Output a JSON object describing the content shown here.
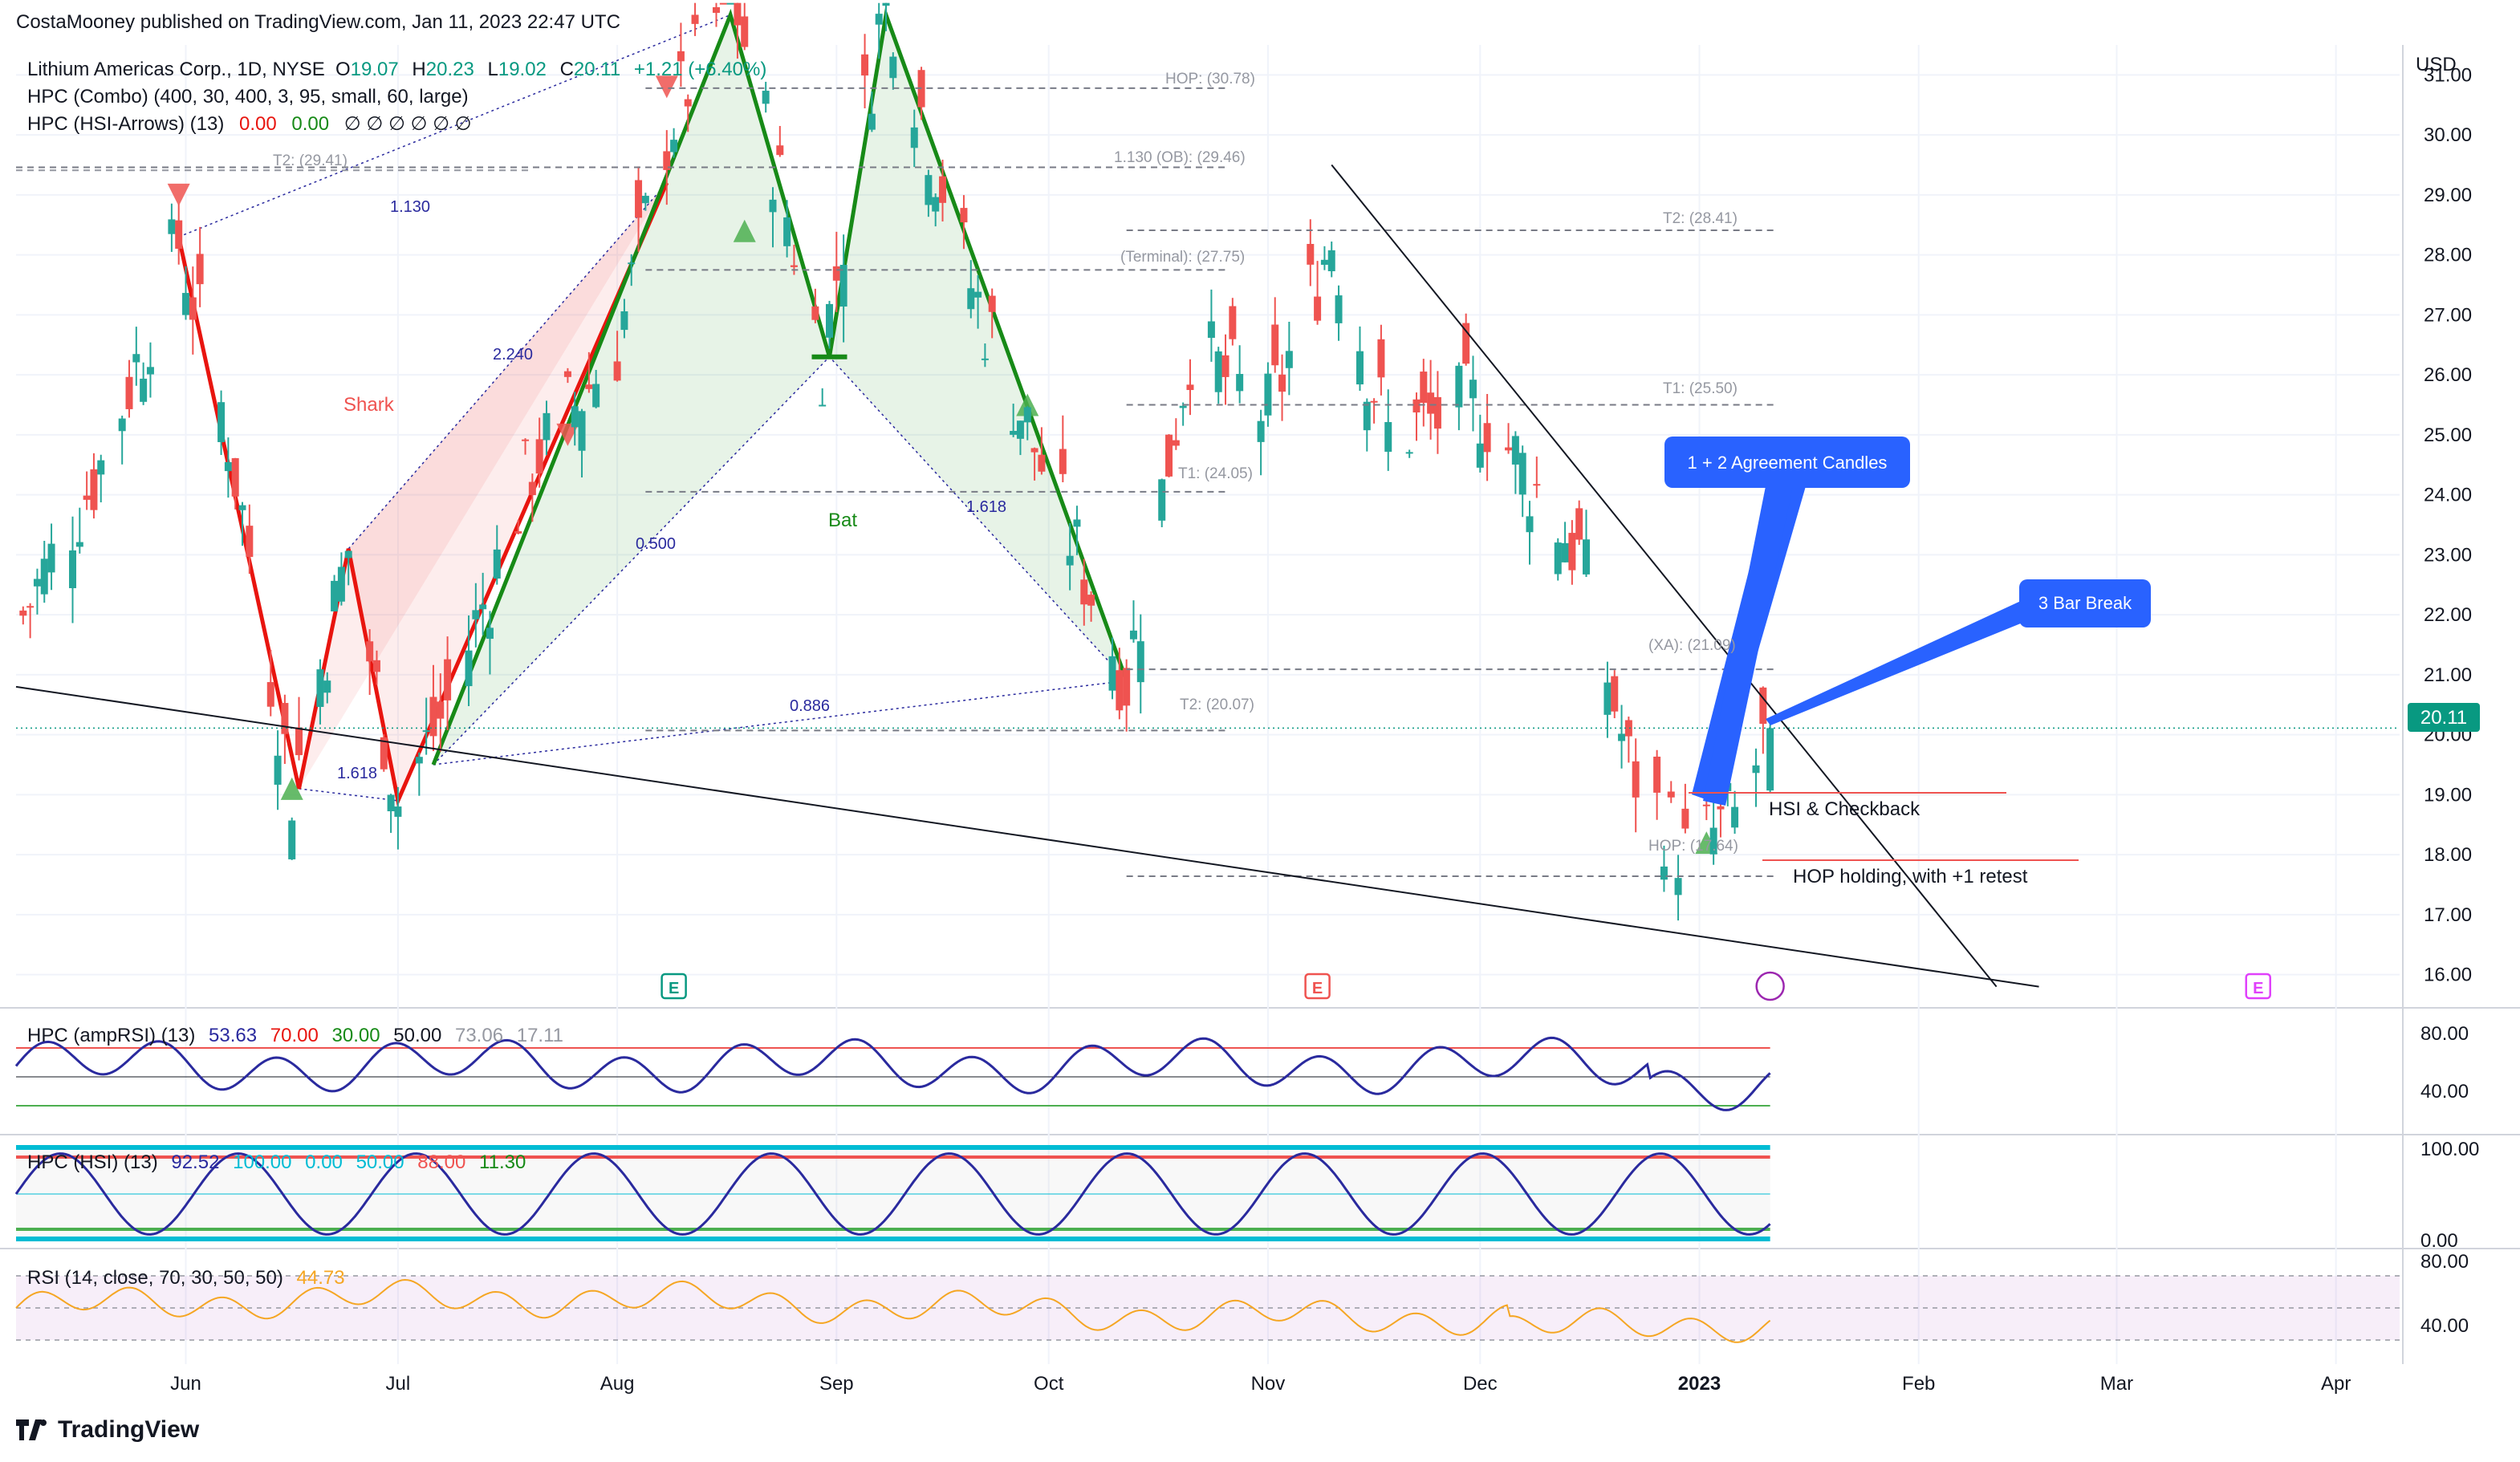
{
  "header": {
    "published": "CostaMooney published on TradingView.com, Jan 11, 2023 22:47 UTC"
  },
  "footer": {
    "brand": "TradingView"
  },
  "legend": {
    "symbol": "Lithium Americas Corp., 1D, NYSE",
    "o_label": "O",
    "o": "19.07",
    "h_label": "H",
    "h": "20.23",
    "l_label": "L",
    "l": "19.02",
    "c_label": "C",
    "c": "20.11",
    "chg": "+1.21 (+6.40%)",
    "combo": "HPC (Combo) (400, 30, 400, 3, 95, small, 60, large)",
    "arrows_name": "HPC (HSI-Arrows) (13)",
    "arrows_v1": "0.00",
    "arrows_v2": "0.00",
    "arrows_rest": "∅ ∅ ∅ ∅ ∅ ∅"
  },
  "price_axis": {
    "currency": "USD",
    "ticks": [
      "31.00",
      "30.00",
      "29.00",
      "28.00",
      "27.00",
      "26.00",
      "25.00",
      "24.00",
      "23.00",
      "22.00",
      "21.00",
      "20.00",
      "19.00",
      "18.00",
      "17.00",
      "16.00"
    ],
    "last_price": "20.11"
  },
  "time_axis": {
    "labels": [
      "Jun",
      "Jul",
      "Aug",
      "Sep",
      "Oct",
      "Nov",
      "Dec",
      "2023",
      "Feb",
      "Mar",
      "Apr"
    ]
  },
  "pattern_labels": {
    "shark": "Shark",
    "bat": "Bat",
    "r1130": "1.130",
    "r2240": "2.240",
    "r0500": "0.500",
    "r1618a": "1.618",
    "r0886": "0.886",
    "r1618b": "1.618"
  },
  "levels": {
    "hop_top": "HOP: (30.78)",
    "ob": "1.130 (OB): (29.46)",
    "t2_left": "T2: (29.41)",
    "t2_right": "T2: (28.41)",
    "terminal": "(Terminal): (27.75)",
    "t1_right": "T1: (25.50)",
    "t1_mid": "T1: (24.05)",
    "xa": "(XA): (21.09)",
    "t2_mid": "T2: (20.07)",
    "hop_bottom": "HOP: (17.64)"
  },
  "callouts": {
    "agreement": "1 + 2 Agreement Candles",
    "break": "3 Bar Break",
    "hsi": "HSI & Checkback",
    "hop": "HOP holding, with +1 retest"
  },
  "earnings": {
    "e": "E"
  },
  "amprsi": {
    "name": "HPC (ampRSI) (13)",
    "v1": "53.63",
    "v2": "70.00",
    "v3": "30.00",
    "v4": "50.00",
    "v5": "73.06",
    "v6": "17.11",
    "ticks": [
      "80.00",
      "40.00"
    ]
  },
  "hsi": {
    "name": "HPC (HSI) (13)",
    "v1": "92.52",
    "v2": "100.00",
    "v3": "0.00",
    "v4": "50.00",
    "v5": "88.00",
    "v6": "11.30",
    "ticks": [
      "100.00",
      "0.00"
    ]
  },
  "rsi": {
    "name": "RSI (14, close, 70, 30, 50, 50)",
    "v1": "44.73",
    "ticks": [
      "80.00",
      "40.00"
    ]
  },
  "colors": {
    "up": "#26a69a",
    "down": "#ef5350",
    "blue": "#2962ff",
    "navy": "#2a2a9e",
    "shark": "#e8150f",
    "bat": "#178a17",
    "rsi": "#f5a623"
  },
  "chart_data": {
    "type": "candlestick",
    "title": "Lithium Americas Corp., 1D, NYSE",
    "currency": "USD",
    "ylim": [
      15.5,
      31.5
    ],
    "x_range": [
      "2022-05-08",
      "2023-04-10"
    ],
    "last": 20.11,
    "close_path": [
      {
        "date": "2022-05-09",
        "close": 22.0
      },
      {
        "date": "2022-05-20",
        "close": 24.5
      },
      {
        "date": "2022-05-31",
        "close": 28.2
      },
      {
        "date": "2022-06-07",
        "close": 25.0
      },
      {
        "date": "2022-06-16",
        "close": 19.1
      },
      {
        "date": "2022-06-24",
        "close": 23.1
      },
      {
        "date": "2022-07-01",
        "close": 18.9
      },
      {
        "date": "2022-07-08",
        "close": 20.5
      },
      {
        "date": "2022-07-20",
        "close": 24.5
      },
      {
        "date": "2022-08-01",
        "close": 26.5
      },
      {
        "date": "2022-08-08",
        "close": 30.0
      },
      {
        "date": "2022-08-17",
        "close": 32.5
      },
      {
        "date": "2022-08-30",
        "close": 26.3
      },
      {
        "date": "2022-09-08",
        "close": 32.5
      },
      {
        "date": "2022-09-20",
        "close": 27.5
      },
      {
        "date": "2022-10-12",
        "close": 20.9
      },
      {
        "date": "2022-10-21",
        "close": 26.5
      },
      {
        "date": "2022-11-01",
        "close": 25.3
      },
      {
        "date": "2022-11-10",
        "close": 28.3
      },
      {
        "date": "2022-11-18",
        "close": 25.0
      },
      {
        "date": "2022-12-01",
        "close": 25.5
      },
      {
        "date": "2022-12-15",
        "close": 23.0
      },
      {
        "date": "2022-12-22",
        "close": 19.5
      },
      {
        "date": "2022-12-30",
        "close": 18.0
      },
      {
        "date": "2023-01-06",
        "close": 18.6
      },
      {
        "date": "2023-01-11",
        "close": 20.11
      }
    ],
    "harmonic_points": {
      "shark": [
        [
          "2022-05-31",
          28.3
        ],
        [
          "2022-06-17",
          19.1
        ],
        [
          "2022-06-24",
          23.1
        ],
        [
          "2022-07-01",
          18.9
        ],
        [
          "2022-08-08",
          29.2
        ]
      ],
      "bat": [
        [
          "2022-07-06",
          19.5
        ],
        [
          "2022-08-17",
          32.0
        ],
        [
          "2022-08-31",
          26.3
        ],
        [
          "2022-09-08",
          32.0
        ],
        [
          "2022-10-12",
          20.9
        ]
      ]
    },
    "trendlines": [
      {
        "from": [
          "2022-05-08",
          20.8
        ],
        "to": [
          "2023-02-18",
          15.8
        ]
      },
      {
        "from": [
          "2022-11-10",
          29.5
        ],
        "to": [
          "2023-02-12",
          15.8
        ]
      }
    ],
    "indicators": {
      "ampRSI": {
        "last": 53.63,
        "upper": 70.0,
        "lower": 30.0,
        "mid": 50.0
      },
      "HSI": {
        "last": 92.52,
        "upper": 88.0,
        "lower": 11.3
      },
      "RSI": {
        "last": 44.73,
        "upper": 70,
        "lower": 30
      }
    }
  }
}
